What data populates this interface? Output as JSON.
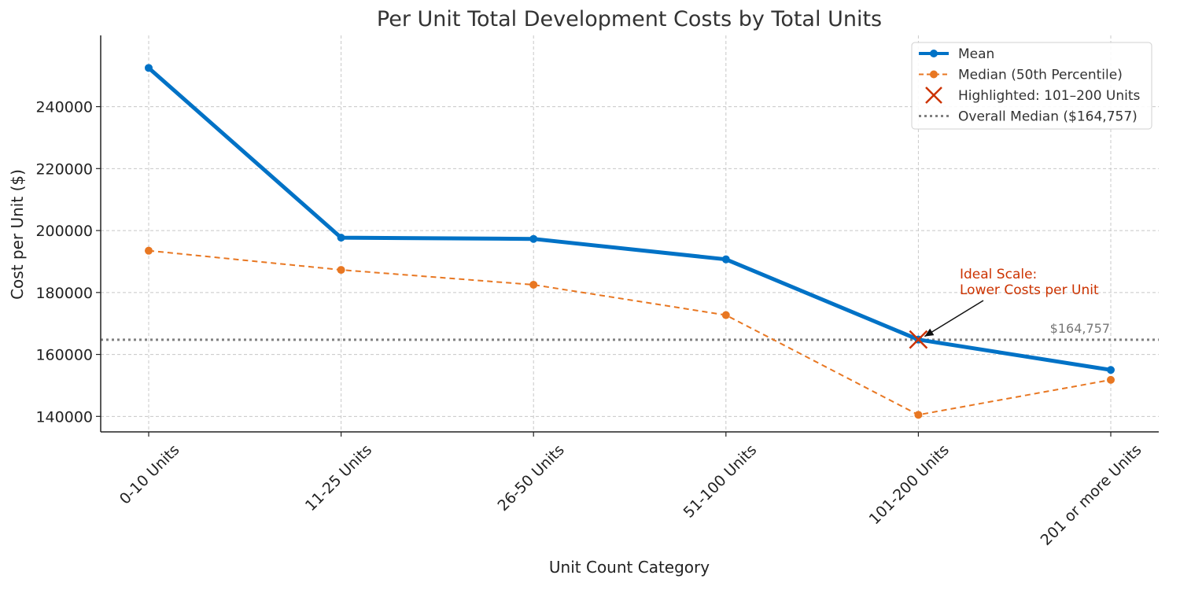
{
  "colors": {
    "mean": "#0072C6",
    "median": "#E87722",
    "highlight": "#CC3300",
    "overall_median": "#808080",
    "annotation": "#CC3300"
  },
  "chart_data": {
    "type": "line",
    "title": "Per Unit Total Development Costs by Total Units",
    "xlabel": "Unit Count Category",
    "ylabel": "Cost per Unit ($)",
    "categories": [
      "0-10 Units",
      "11-25 Units",
      "26-50 Units",
      "51-100 Units",
      "101-200 Units",
      "201 or more Units"
    ],
    "series": [
      {
        "name": "Mean",
        "style": "solid",
        "values": [
          252500,
          197700,
          197300,
          190700,
          164800,
          155000
        ]
      },
      {
        "name": "Median (50th Percentile)",
        "style": "dashed",
        "values": [
          193500,
          187300,
          182500,
          172700,
          140500,
          151800
        ]
      }
    ],
    "highlight": {
      "name": "Highlighted: 101–200 Units",
      "category": "101-200 Units",
      "value": 164800,
      "marker": "x"
    },
    "overall_median": {
      "name": "Overall Median ($164,757)",
      "value": 164757,
      "label": "$164,757",
      "style": "dotted"
    },
    "annotation": {
      "lines": [
        "Ideal Scale:",
        "Lower Costs per Unit"
      ],
      "target_category": "101-200 Units",
      "target_value": 164800
    },
    "yticks": [
      140000,
      160000,
      180000,
      200000,
      220000,
      240000
    ],
    "ylim": [
      135000,
      263000
    ],
    "grid": true,
    "legend_position": "top-right"
  }
}
